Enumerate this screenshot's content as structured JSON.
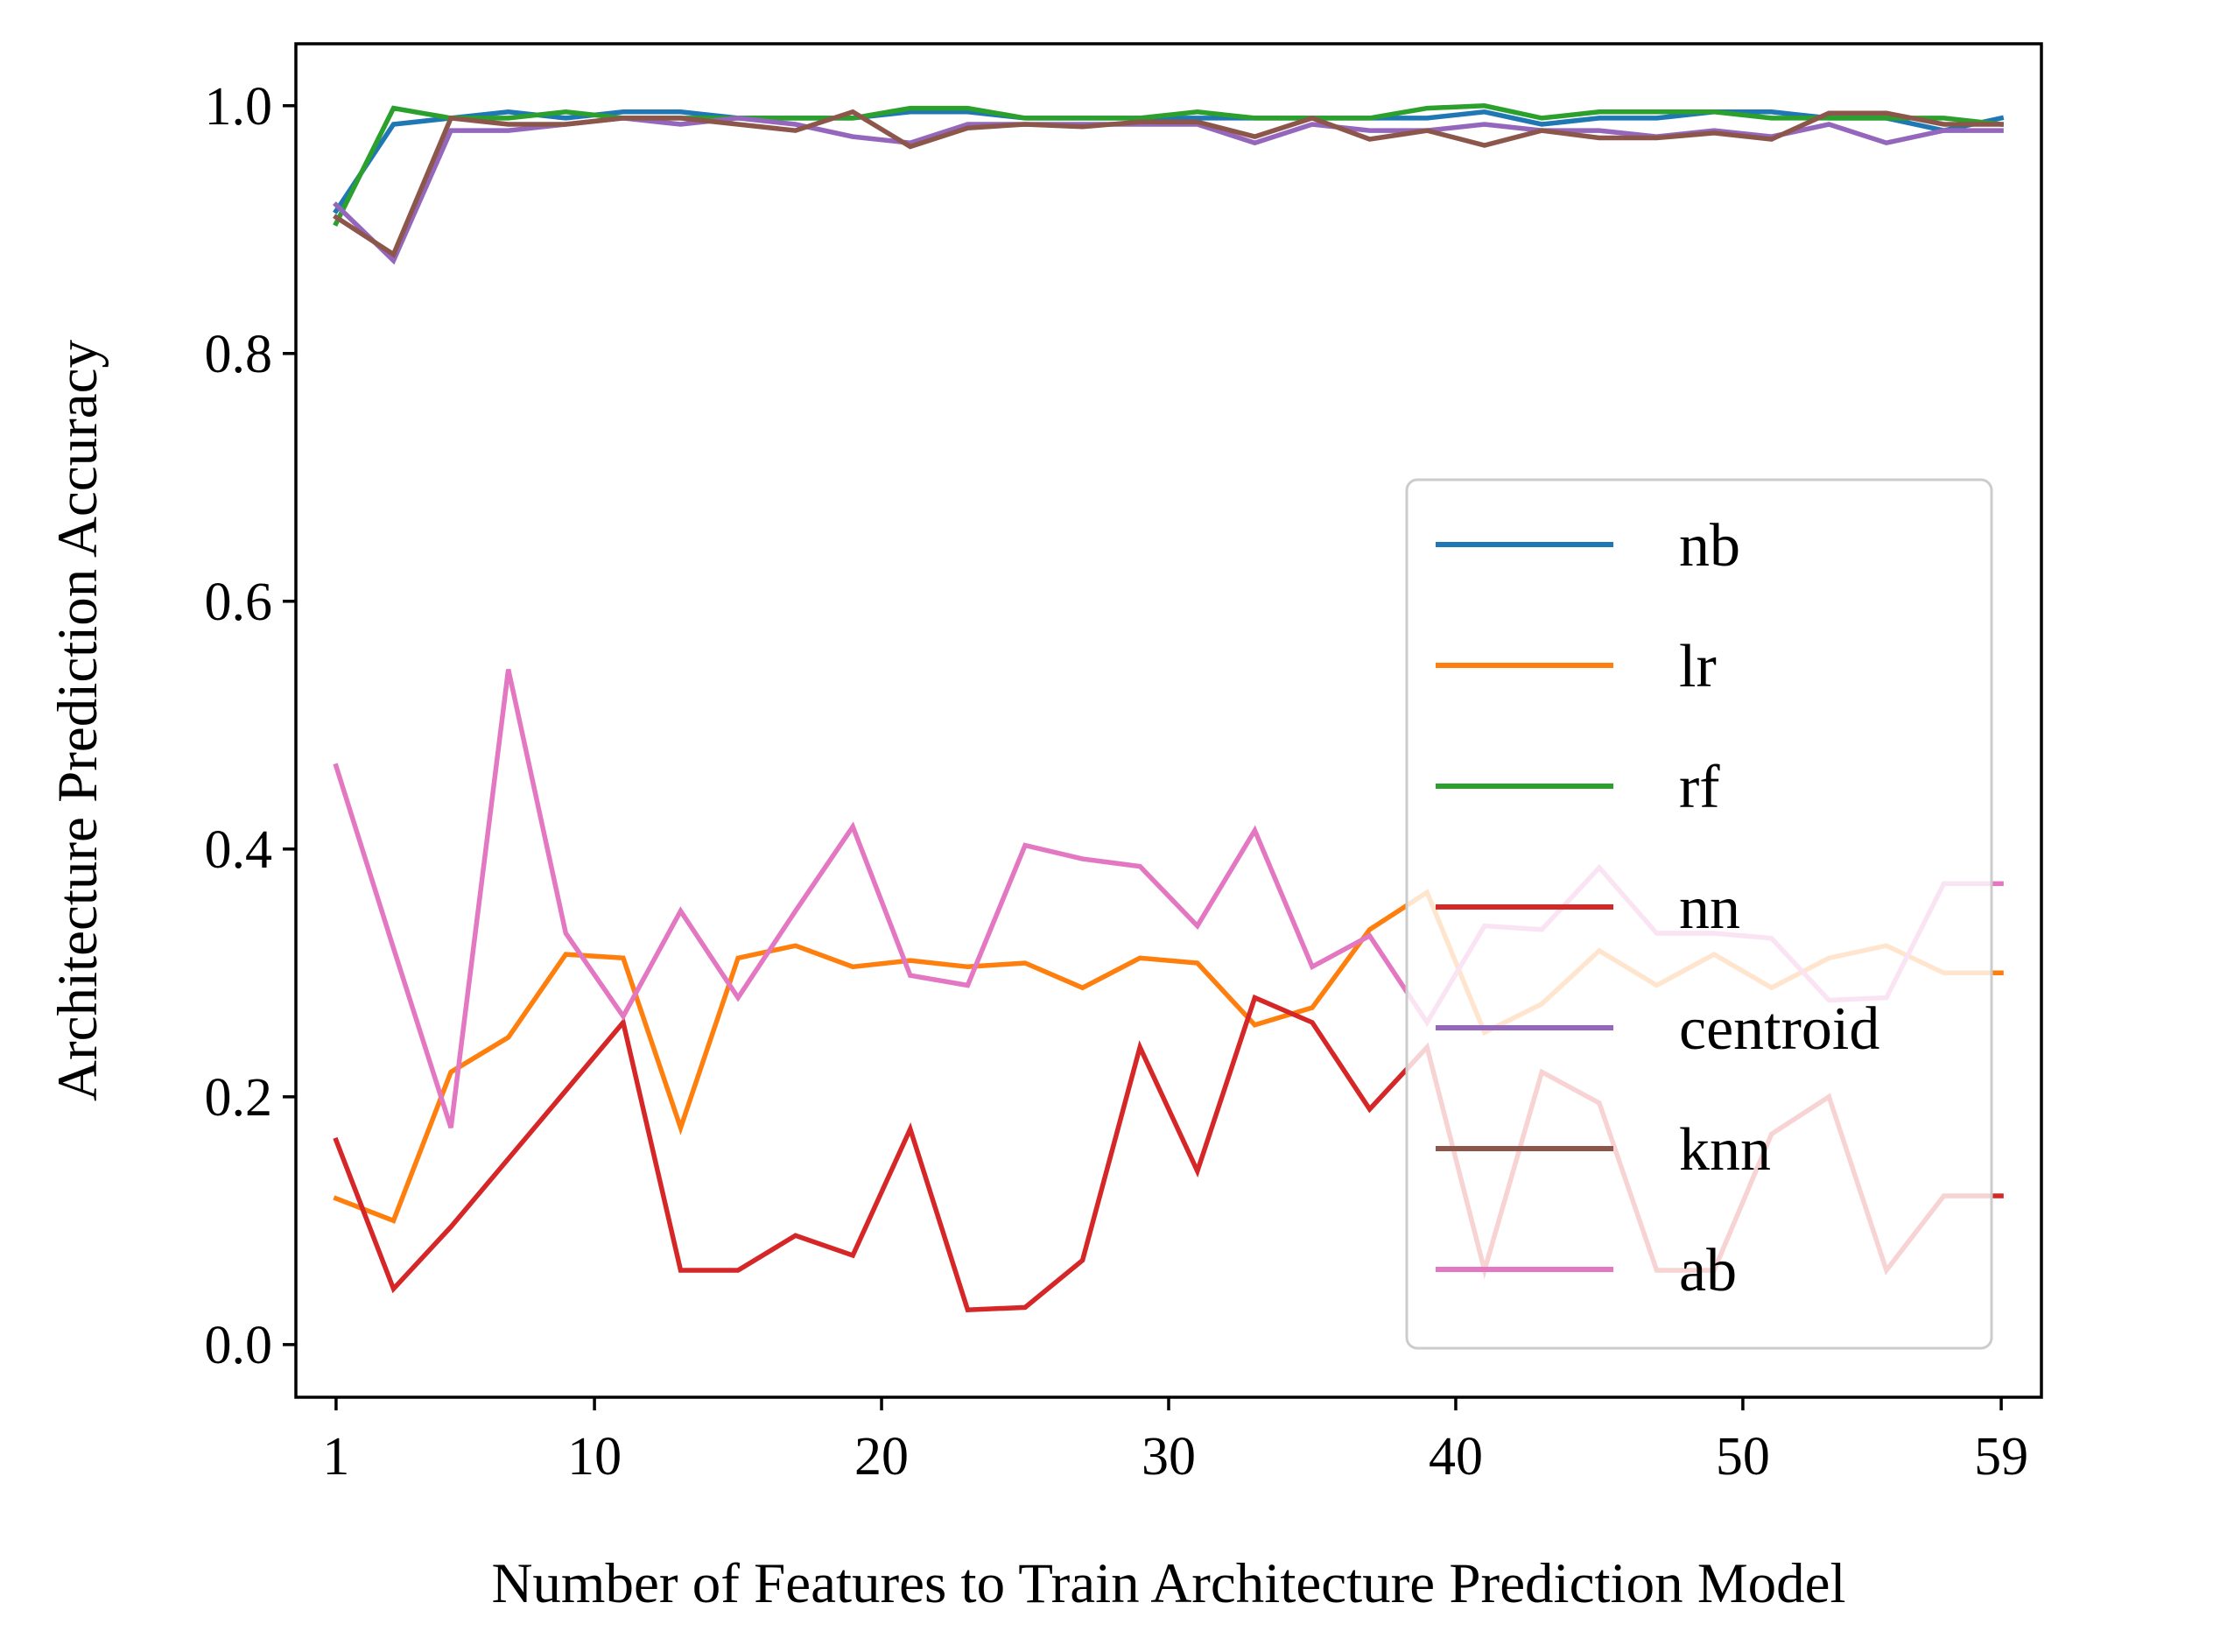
{
  "chart_data": {
    "type": "line",
    "title": "",
    "xlabel": "Number of Features to Train Architecture Prediction Model",
    "ylabel": "Architecture Prediction Accuracy",
    "xlim": [
      -0.4,
      60.4
    ],
    "ylim": [
      -0.0425,
      1.05
    ],
    "xticks": [
      1,
      10,
      20,
      30,
      40,
      50,
      59
    ],
    "yticks": [
      0.0,
      0.2,
      0.4,
      0.6,
      0.8,
      1.0
    ],
    "ytick_labels": [
      "0.0",
      "0.2",
      "0.4",
      "0.6",
      "0.8",
      "1.0"
    ],
    "grid": false,
    "legend_position": "center-right",
    "x": [
      1,
      3,
      5,
      7,
      9,
      11,
      13,
      15,
      17,
      19,
      21,
      23,
      25,
      27,
      29,
      31,
      33,
      35,
      37,
      39,
      41,
      43,
      45,
      47,
      49,
      51,
      53,
      55,
      57,
      59
    ],
    "series": [
      {
        "name": "nb",
        "color": "#1f77b4",
        "values": [
          0.915,
          0.985,
          0.99,
          0.995,
          0.99,
          0.995,
          0.995,
          0.99,
          0.99,
          0.99,
          0.995,
          0.995,
          0.99,
          0.99,
          0.99,
          0.99,
          0.99,
          0.99,
          0.99,
          0.99,
          0.995,
          0.985,
          0.99,
          0.99,
          0.995,
          0.995,
          0.99,
          0.99,
          0.98,
          0.99
        ]
      },
      {
        "name": "lr",
        "color": "#ff7f0e",
        "values": [
          0.118,
          0.1,
          0.22,
          0.248,
          0.315,
          0.312,
          0.175,
          0.312,
          0.322,
          0.305,
          0.31,
          0.305,
          0.308,
          0.288,
          0.312,
          0.308,
          0.258,
          0.272,
          0.335,
          0.365,
          0.252,
          0.275,
          0.318,
          0.29,
          0.315,
          0.288,
          0.312,
          0.322,
          0.3,
          0.3
        ]
      },
      {
        "name": "rf",
        "color": "#2ca02c",
        "values": [
          0.905,
          0.998,
          0.99,
          0.99,
          0.995,
          0.99,
          0.99,
          0.99,
          0.99,
          0.99,
          0.998,
          0.998,
          0.99,
          0.99,
          0.99,
          0.995,
          0.99,
          0.99,
          0.99,
          0.998,
          1.0,
          0.99,
          0.995,
          0.995,
          0.995,
          0.99,
          0.99,
          0.99,
          0.99,
          0.985
        ]
      },
      {
        "name": "nn",
        "color": "#d62728",
        "values": [
          0.165,
          0.045,
          0.095,
          0.15,
          0.205,
          0.26,
          0.06,
          0.06,
          0.088,
          0.072,
          0.174,
          0.028,
          0.03,
          0.068,
          0.24,
          0.14,
          0.28,
          0.26,
          0.19,
          0.24,
          0.06,
          0.22,
          0.195,
          0.06,
          0.06,
          0.17,
          0.2,
          0.06,
          0.12,
          0.12
        ]
      },
      {
        "name": "centroid",
        "color": "#9467bd",
        "values": [
          0.92,
          0.875,
          0.98,
          0.98,
          0.985,
          0.99,
          0.985,
          0.99,
          0.985,
          0.975,
          0.97,
          0.985,
          0.985,
          0.985,
          0.985,
          0.985,
          0.97,
          0.985,
          0.98,
          0.98,
          0.985,
          0.98,
          0.98,
          0.975,
          0.98,
          0.975,
          0.985,
          0.97,
          0.98,
          0.98
        ]
      },
      {
        "name": "knn",
        "color": "#8c564b",
        "values": [
          0.91,
          0.88,
          0.99,
          0.985,
          0.985,
          0.99,
          0.99,
          0.985,
          0.98,
          0.995,
          0.967,
          0.982,
          0.985,
          0.983,
          0.987,
          0.987,
          0.975,
          0.99,
          0.973,
          0.98,
          0.968,
          0.98,
          0.974,
          0.974,
          0.978,
          0.973,
          0.994,
          0.994,
          0.985,
          0.985
        ]
      },
      {
        "name": "ab",
        "color": "#e377c2",
        "values": [
          0.467,
          0.32,
          0.175,
          0.545,
          0.332,
          0.265,
          0.35,
          0.28,
          0.35,
          0.418,
          0.298,
          0.29,
          0.403,
          0.392,
          0.386,
          0.338,
          0.415,
          0.305,
          0.33,
          0.26,
          0.338,
          0.335,
          0.385,
          0.332,
          0.332,
          0.328,
          0.278,
          0.28,
          0.372,
          0.372
        ]
      }
    ]
  }
}
